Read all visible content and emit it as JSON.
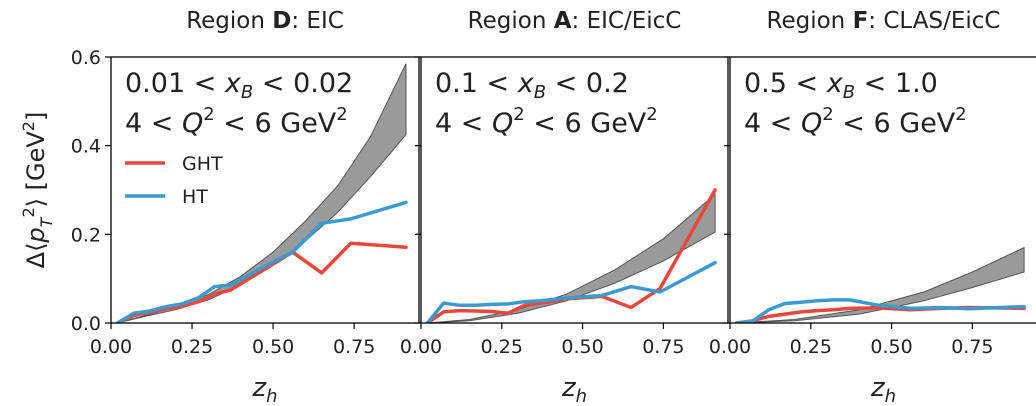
{
  "figure": {
    "ylabel": "Δ⟨p_T^2⟩ [GeV^2]",
    "xlabel": "z_h"
  },
  "chart_data": [
    {
      "type": "line",
      "title": "Region D: EIC",
      "title_parts": {
        "prefix": "Region ",
        "letter": "D",
        "suffix": ": EIC"
      },
      "annotation": {
        "xb_range": "0.01 < x_B < 0.02",
        "q2_range": "4 < Q^2 < 6 GeV^2",
        "xb_low": "0.01",
        "xb_high": "0.02",
        "q2_low": "4",
        "q2_high": "6"
      },
      "xlim": [
        0.0,
        0.95
      ],
      "ylim": [
        0.0,
        0.6
      ],
      "xticks": [
        0.0,
        0.25,
        0.5,
        0.75
      ],
      "yticks": [
        0.0,
        0.2,
        0.4,
        0.6
      ],
      "xtick_labels": [
        "0.00",
        "0.25",
        "0.50",
        "0.75"
      ],
      "ytick_labels": [
        "0.0",
        "0.2",
        "0.4",
        "0.6"
      ],
      "legend": {
        "placement": "upper-left",
        "entries": [
          "GHT",
          "HT"
        ]
      },
      "band": {
        "x": [
          0.02,
          0.1,
          0.2,
          0.3,
          0.4,
          0.5,
          0.6,
          0.7,
          0.8,
          0.91
        ],
        "lower": [
          0.0,
          0.014,
          0.03,
          0.052,
          0.086,
          0.13,
          0.185,
          0.25,
          0.33,
          0.425
        ],
        "upper": [
          0.0,
          0.016,
          0.036,
          0.064,
          0.105,
          0.16,
          0.23,
          0.31,
          0.42,
          0.585
        ]
      },
      "series": [
        {
          "name": "GHT",
          "color": "#e8483c",
          "x": [
            0.02,
            0.07,
            0.12,
            0.17,
            0.22,
            0.27,
            0.32,
            0.37,
            0.46,
            0.56,
            0.65,
            0.74,
            0.91
          ],
          "y": [
            0.0,
            0.017,
            0.025,
            0.032,
            0.038,
            0.048,
            0.065,
            0.075,
            0.115,
            0.16,
            0.113,
            0.18,
            0.171
          ]
        },
        {
          "name": "HT",
          "color": "#3b9bd1",
          "x": [
            0.02,
            0.07,
            0.12,
            0.17,
            0.22,
            0.27,
            0.32,
            0.37,
            0.46,
            0.56,
            0.65,
            0.74,
            0.91
          ],
          "y": [
            0.0,
            0.022,
            0.027,
            0.037,
            0.043,
            0.057,
            0.082,
            0.086,
            0.122,
            0.16,
            0.225,
            0.235,
            0.272
          ]
        }
      ]
    },
    {
      "type": "line",
      "title": "Region A: EIC/EicC",
      "title_parts": {
        "prefix": "Region ",
        "letter": "A",
        "suffix": ": EIC/EicC"
      },
      "annotation": {
        "xb_range": "0.1 < x_B < 0.2",
        "q2_range": "4 < Q^2 < 6 GeV^2",
        "xb_low": "0.1",
        "xb_high": "0.2",
        "q2_low": "4",
        "q2_high": "6"
      },
      "xlim": [
        0.0,
        0.95
      ],
      "ylim": [
        0.0,
        0.6
      ],
      "xticks": [
        0.0,
        0.25,
        0.5,
        0.75
      ],
      "yticks": [
        0.0,
        0.2,
        0.4,
        0.6
      ],
      "xtick_labels": [
        "0.00",
        "0.25",
        "0.50",
        "0.75"
      ],
      "ytick_labels": [],
      "band": {
        "x": [
          0.02,
          0.15,
          0.3,
          0.45,
          0.6,
          0.75,
          0.91
        ],
        "lower": [
          0.0,
          0.005,
          0.022,
          0.05,
          0.09,
          0.14,
          0.205
        ],
        "upper": [
          0.0,
          0.008,
          0.03,
          0.065,
          0.12,
          0.19,
          0.29
        ]
      },
      "series": [
        {
          "name": "GHT",
          "color": "#e8483c",
          "x": [
            0.02,
            0.07,
            0.12,
            0.17,
            0.22,
            0.27,
            0.32,
            0.37,
            0.46,
            0.56,
            0.65,
            0.74,
            0.91
          ],
          "y": [
            0.0,
            0.025,
            0.028,
            0.027,
            0.026,
            0.022,
            0.04,
            0.045,
            0.055,
            0.06,
            0.035,
            0.078,
            0.3
          ]
        },
        {
          "name": "HT",
          "color": "#3b9bd1",
          "x": [
            0.02,
            0.07,
            0.12,
            0.17,
            0.22,
            0.27,
            0.32,
            0.37,
            0.46,
            0.56,
            0.65,
            0.74,
            0.91
          ],
          "y": [
            0.0,
            0.045,
            0.04,
            0.04,
            0.042,
            0.043,
            0.048,
            0.05,
            0.057,
            0.062,
            0.082,
            0.07,
            0.136
          ]
        }
      ]
    },
    {
      "type": "line",
      "title": "Region F: CLAS/EicC",
      "title_parts": {
        "prefix": "Region ",
        "letter": "F",
        "suffix": ": CLAS/EicC"
      },
      "annotation": {
        "xb_range": "0.5 < x_B < 1.0",
        "q2_range": "4 < Q^2 < 6 GeV^2",
        "xb_low": "0.5",
        "xb_high": "1.0",
        "q2_low": "4",
        "q2_high": "6"
      },
      "xlim": [
        0.0,
        0.95
      ],
      "ylim": [
        0.0,
        0.6
      ],
      "xticks": [
        0.0,
        0.25,
        0.5,
        0.75
      ],
      "yticks": [
        0.0,
        0.2,
        0.4,
        0.6
      ],
      "xtick_labels": [
        "0.00",
        "0.25",
        "0.50",
        "0.75"
      ],
      "ytick_labels": [],
      "band": {
        "x": [
          0.02,
          0.2,
          0.4,
          0.6,
          0.75,
          0.91
        ],
        "lower": [
          0.0,
          0.005,
          0.02,
          0.05,
          0.08,
          0.115
        ],
        "upper": [
          0.0,
          0.008,
          0.03,
          0.07,
          0.115,
          0.17
        ]
      },
      "series": [
        {
          "name": "GHT",
          "color": "#e8483c",
          "x": [
            0.02,
            0.07,
            0.12,
            0.17,
            0.22,
            0.27,
            0.32,
            0.37,
            0.46,
            0.56,
            0.65,
            0.74,
            0.91
          ],
          "y": [
            0.0,
            0.005,
            0.015,
            0.02,
            0.025,
            0.028,
            0.03,
            0.033,
            0.034,
            0.03,
            0.033,
            0.035,
            0.033
          ]
        },
        {
          "name": "HT",
          "color": "#3b9bd1",
          "x": [
            0.02,
            0.07,
            0.12,
            0.17,
            0.22,
            0.27,
            0.32,
            0.37,
            0.46,
            0.56,
            0.65,
            0.74,
            0.91
          ],
          "y": [
            0.0,
            0.004,
            0.03,
            0.044,
            0.047,
            0.05,
            0.052,
            0.052,
            0.04,
            0.033,
            0.035,
            0.032,
            0.037
          ]
        }
      ]
    }
  ],
  "colors": {
    "band": "#9a9a9a",
    "band_edge": "#555555",
    "axis": "#000000"
  }
}
